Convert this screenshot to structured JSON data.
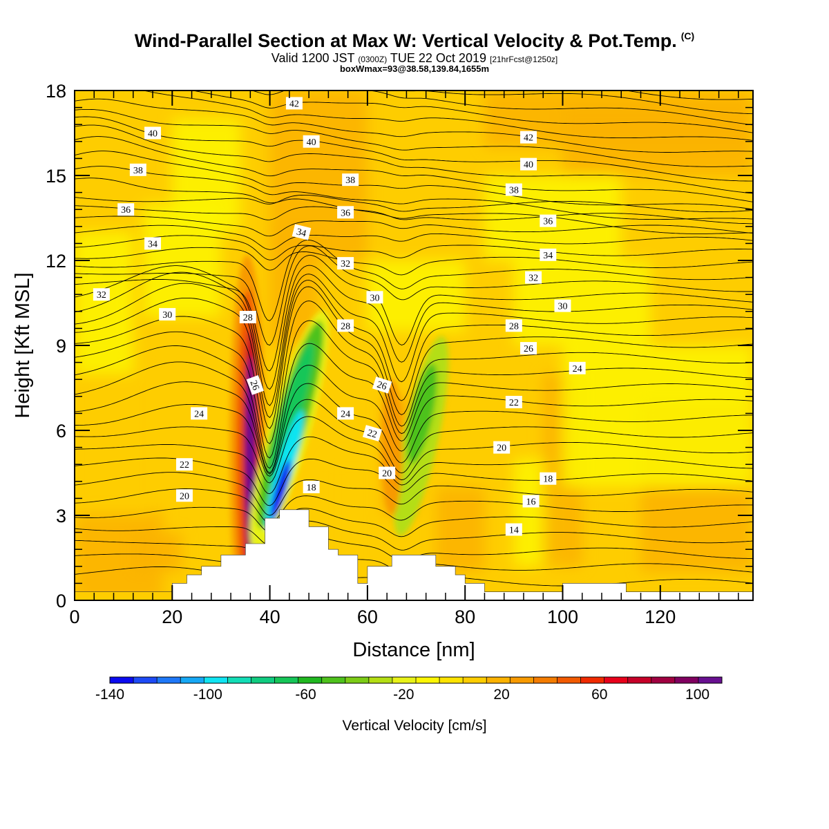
{
  "header": {
    "title": "Wind-Parallel Section at Max W: Vertical Velocity & Pot.Temp.",
    "title_mark": "(C)",
    "subtitle_pre": "Valid 1200 JST ",
    "subtitle_small1": "(0300Z)",
    "subtitle_mid": " TUE 22 Oct 2019 ",
    "subtitle_small2": "[21hrFcst@1250z]",
    "subsubtitle": "boxWmax=93@38.58,139.84,1655m"
  },
  "chart_data": {
    "type": "heatmap",
    "title": "Wind-Parallel Section at Max W: Vertical Velocity & Pot.Temp.",
    "xlabel": "Distance [nm]",
    "ylabel": "Height [Kft MSL]",
    "xlim": [
      0,
      139
    ],
    "ylim": [
      0,
      18
    ],
    "x_ticks": [
      0,
      20,
      40,
      60,
      80,
      100,
      120
    ],
    "y_ticks": [
      0,
      3,
      6,
      9,
      12,
      15,
      18
    ],
    "colorbar": {
      "label": "Vertical Velocity [cm/s]",
      "range": [
        -140,
        110
      ],
      "tick_values": [
        -140,
        -100,
        -60,
        -20,
        20,
        60,
        100
      ],
      "colors": [
        "#0b0bf0",
        "#1d4af6",
        "#1e78f8",
        "#16a8f5",
        "#10e4f2",
        "#13ddb6",
        "#10cc80",
        "#15c658",
        "#20b820",
        "#4ec21c",
        "#7ccc16",
        "#b4de14",
        "#e8f218",
        "#fdf604",
        "#fee300",
        "#fecd00",
        "#fcb200",
        "#f89a00",
        "#f47c00",
        "#f25a00",
        "#f02a00",
        "#e8001a",
        "#c60028",
        "#a00040",
        "#800060",
        "#681090"
      ]
    },
    "theta_contour_labels": [
      42,
      42,
      40,
      40,
      40,
      38,
      38,
      38,
      36,
      36,
      36,
      34,
      34,
      34,
      32,
      32,
      32,
      30,
      30,
      30,
      28,
      28,
      28,
      26,
      26,
      26,
      24,
      24,
      24,
      22,
      22,
      22,
      20,
      20,
      20,
      18,
      18,
      16,
      14
    ],
    "velocity_features": [
      {
        "kind": "updraft",
        "x": 36,
        "height_kft": 5.0,
        "value": 110
      },
      {
        "kind": "downdraft",
        "x": 42,
        "height_kft": 4.0,
        "value": -140
      },
      {
        "kind": "downdraft",
        "x": 45,
        "height_kft": 8.5,
        "value": -70
      },
      {
        "kind": "downdraft",
        "x": 71,
        "height_kft": 6.8,
        "value": -50
      },
      {
        "kind": "updraft",
        "x": 65,
        "height_kft": 5.5,
        "value": 35
      }
    ],
    "terrain_kft": [
      [
        0,
        0.3
      ],
      [
        20,
        0.3
      ],
      [
        20,
        0.6
      ],
      [
        23,
        0.6
      ],
      [
        23,
        0.9
      ],
      [
        26,
        0.9
      ],
      [
        26,
        1.2
      ],
      [
        30,
        1.2
      ],
      [
        30,
        1.6
      ],
      [
        35,
        1.6
      ],
      [
        35,
        2.0
      ],
      [
        39,
        2.0
      ],
      [
        39,
        2.9
      ],
      [
        42,
        2.9
      ],
      [
        42,
        3.2
      ],
      [
        48,
        3.2
      ],
      [
        48,
        2.6
      ],
      [
        52,
        2.6
      ],
      [
        52,
        1.8
      ],
      [
        54,
        1.8
      ],
      [
        54,
        1.6
      ],
      [
        58,
        1.6
      ],
      [
        58,
        0.6
      ],
      [
        60,
        0.6
      ],
      [
        60,
        1.2
      ],
      [
        65,
        1.2
      ],
      [
        65,
        1.6
      ],
      [
        74,
        1.6
      ],
      [
        74,
        1.2
      ],
      [
        78,
        1.2
      ],
      [
        78,
        0.9
      ],
      [
        80,
        0.9
      ],
      [
        80,
        0.6
      ],
      [
        84,
        0.6
      ],
      [
        84,
        0.3
      ],
      [
        100,
        0.3
      ],
      [
        100,
        0.6
      ],
      [
        113,
        0.6
      ],
      [
        113,
        0.3
      ],
      [
        139,
        0.3
      ]
    ]
  }
}
